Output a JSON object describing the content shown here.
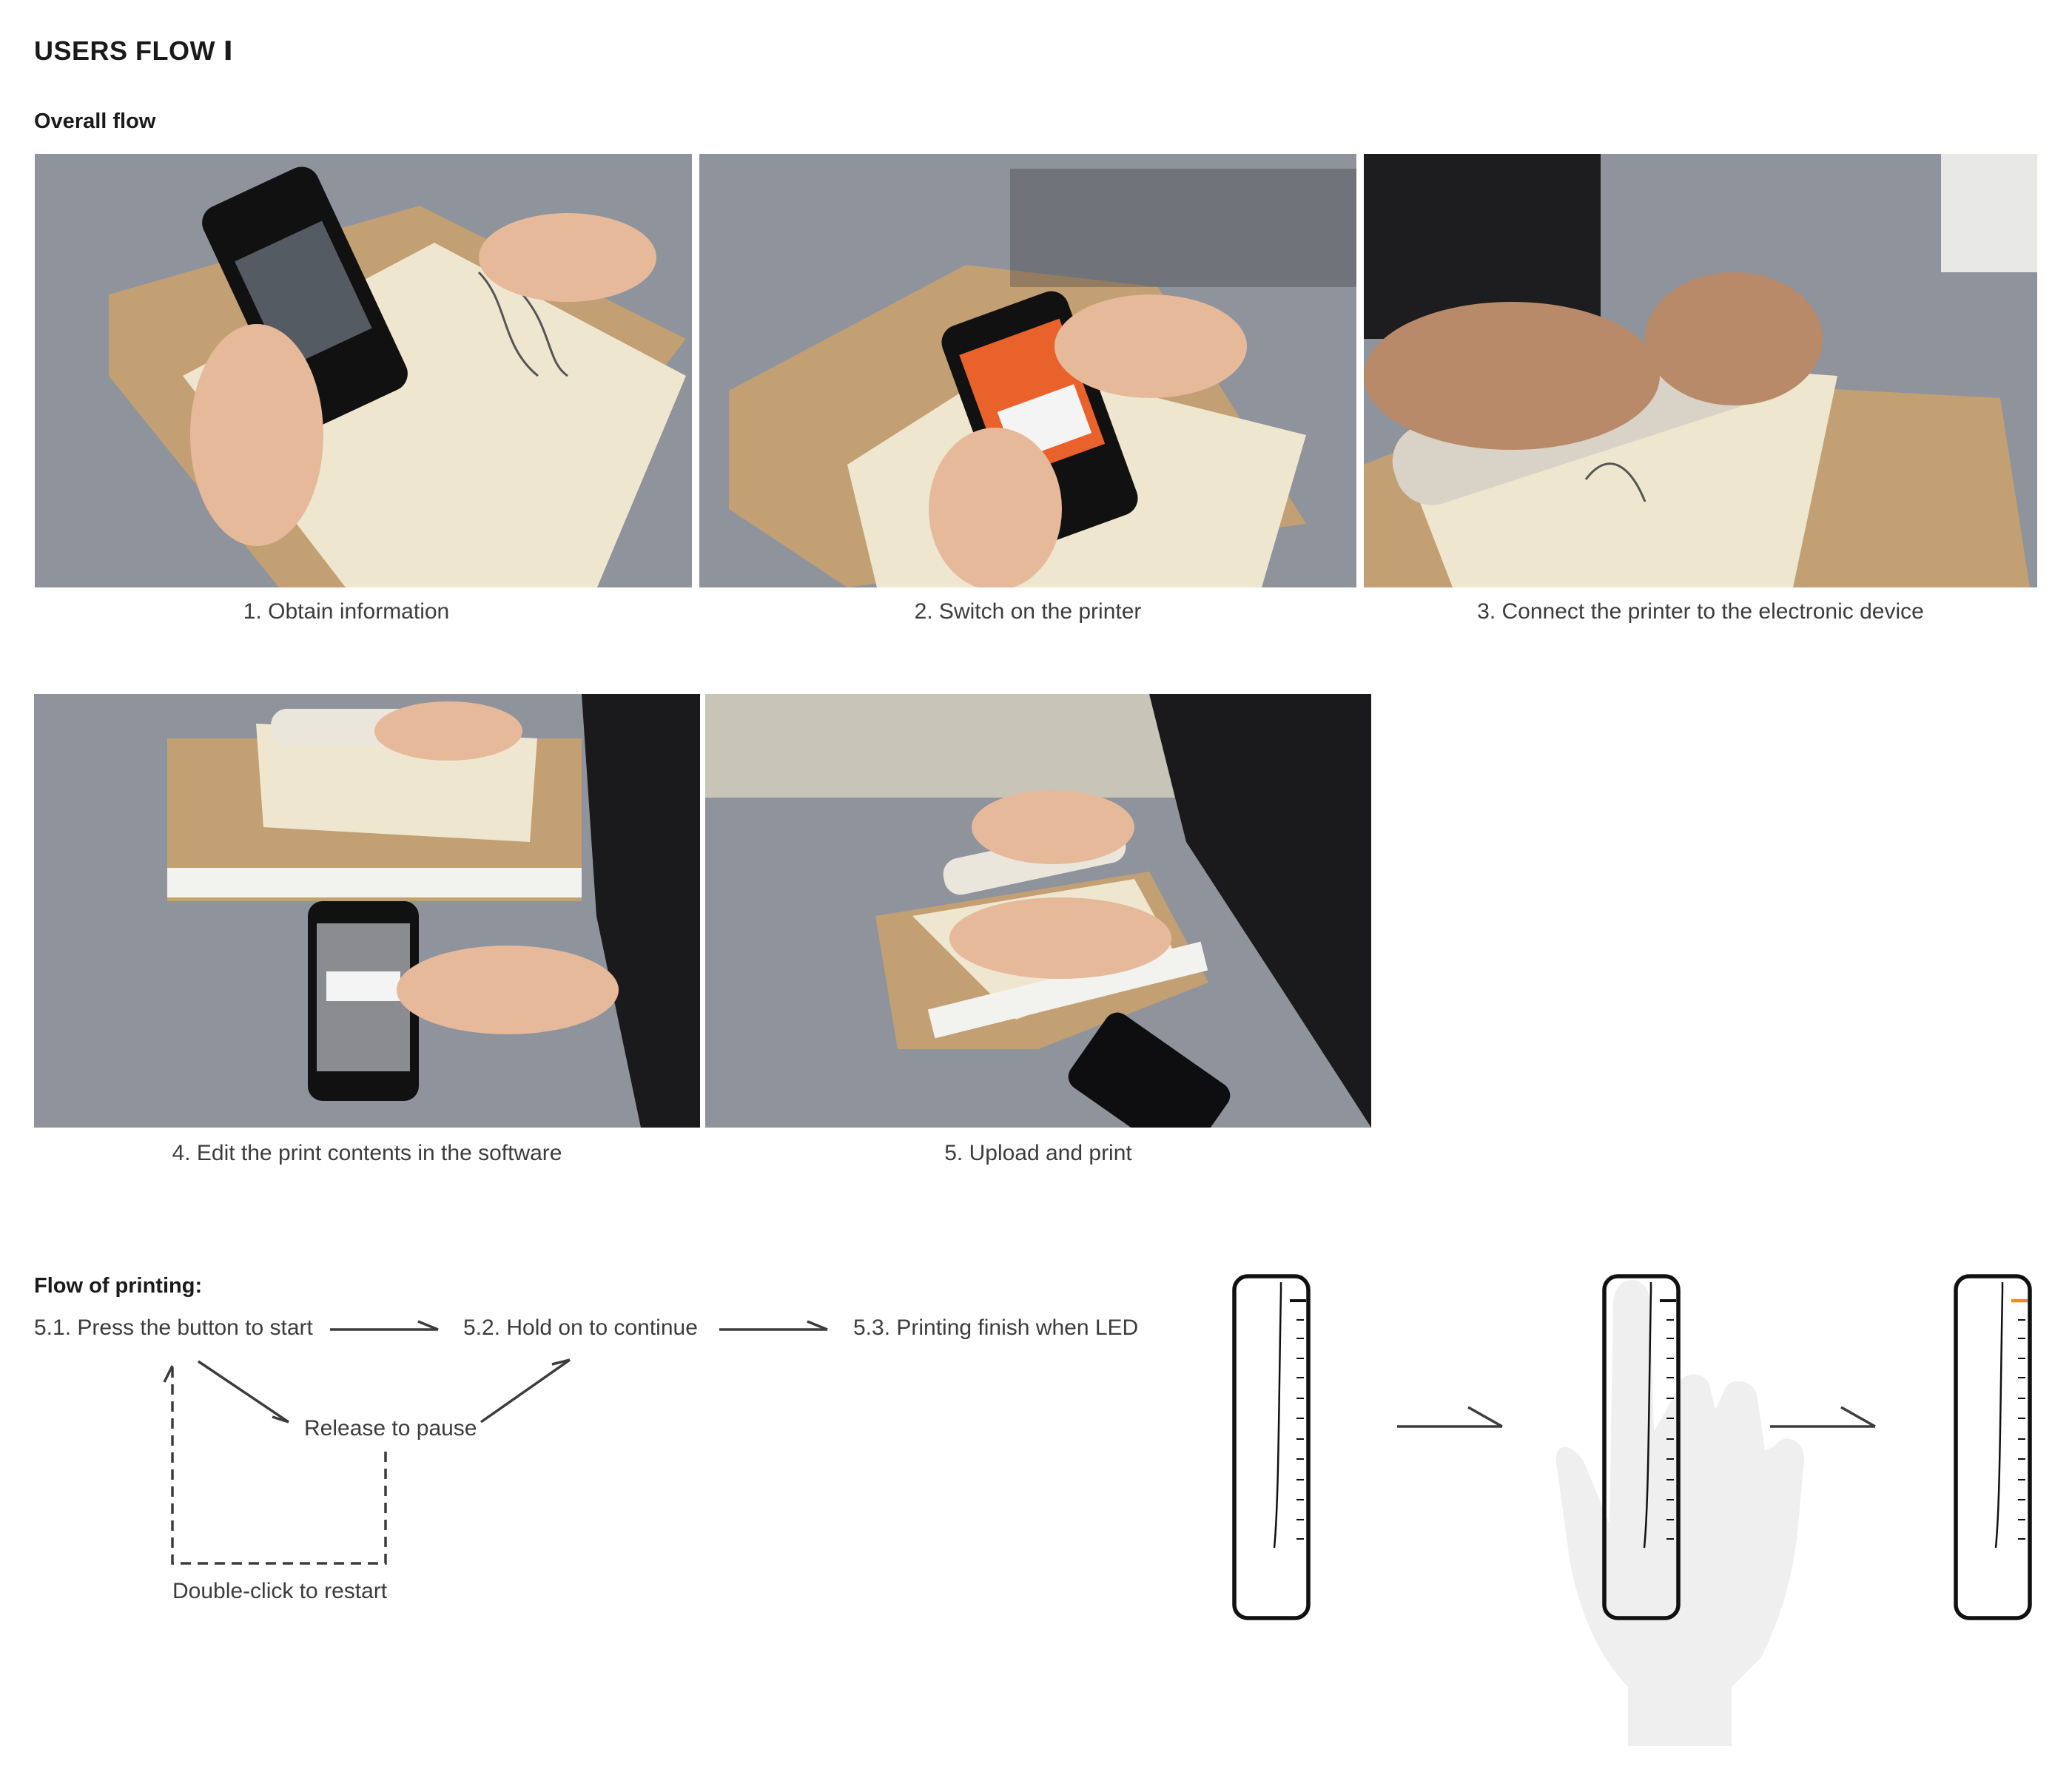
{
  "header": {
    "title": "USERS FLOW Ⅰ",
    "subtitle": "Overall flow"
  },
  "overall_flow": {
    "steps": [
      {
        "caption": "1. Obtain information"
      },
      {
        "caption": "2. Switch on the printer"
      },
      {
        "caption": "3. Connect the printer to the electronic device"
      },
      {
        "caption": "4. Edit the print contents in the software"
      },
      {
        "caption": "5. Upload and print"
      }
    ]
  },
  "printing_flow": {
    "heading": "Flow of printing:",
    "step_1": "5.1. Press the button to start",
    "step_2": "5.2. Hold on to continue",
    "step_3": "5.3. Printing finish when LED",
    "pause": "Release to pause",
    "restart": "Double-click to restart"
  },
  "colors": {
    "table_gray": "#8e939c",
    "notebook_kraft": "#c3a074",
    "paper": "#efe6cf",
    "led_orange": "#f08a1c",
    "hand_gray": "#efefef"
  },
  "icons": [
    "phone-icon",
    "printer-icon",
    "hand-icon",
    "arrow-icon"
  ]
}
